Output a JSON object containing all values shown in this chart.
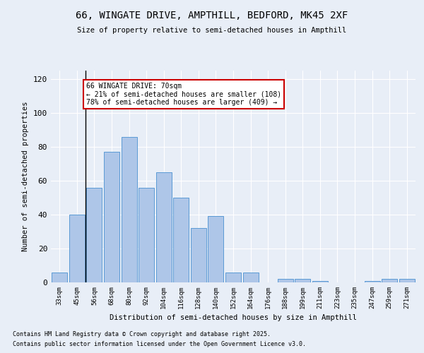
{
  "title_line1": "66, WINGATE DRIVE, AMPTHILL, BEDFORD, MK45 2XF",
  "title_line2": "Size of property relative to semi-detached houses in Ampthill",
  "xlabel": "Distribution of semi-detached houses by size in Ampthill",
  "ylabel": "Number of semi-detached properties",
  "categories": [
    "33sqm",
    "45sqm",
    "56sqm",
    "68sqm",
    "80sqm",
    "92sqm",
    "104sqm",
    "116sqm",
    "128sqm",
    "140sqm",
    "152sqm",
    "164sqm",
    "176sqm",
    "188sqm",
    "199sqm",
    "211sqm",
    "223sqm",
    "235sqm",
    "247sqm",
    "259sqm",
    "271sqm"
  ],
  "values": [
    6,
    40,
    56,
    77,
    86,
    56,
    65,
    50,
    32,
    39,
    6,
    6,
    0,
    2,
    2,
    1,
    0,
    0,
    1,
    2,
    2
  ],
  "bar_color": "#aec6e8",
  "bar_edge_color": "#5b9bd5",
  "annotation_title": "66 WINGATE DRIVE: 70sqm",
  "annotation_line1": "← 21% of semi-detached houses are smaller (108)",
  "annotation_line2": "78% of semi-detached houses are larger (409) →",
  "annotation_box_color": "#ffffff",
  "annotation_box_edge_color": "#cc0000",
  "vline_x": 1.5,
  "ylim": [
    0,
    125
  ],
  "yticks": [
    0,
    20,
    40,
    60,
    80,
    100,
    120
  ],
  "bg_color": "#e8eef7",
  "footnote1": "Contains HM Land Registry data © Crown copyright and database right 2025.",
  "footnote2": "Contains public sector information licensed under the Open Government Licence v3.0."
}
